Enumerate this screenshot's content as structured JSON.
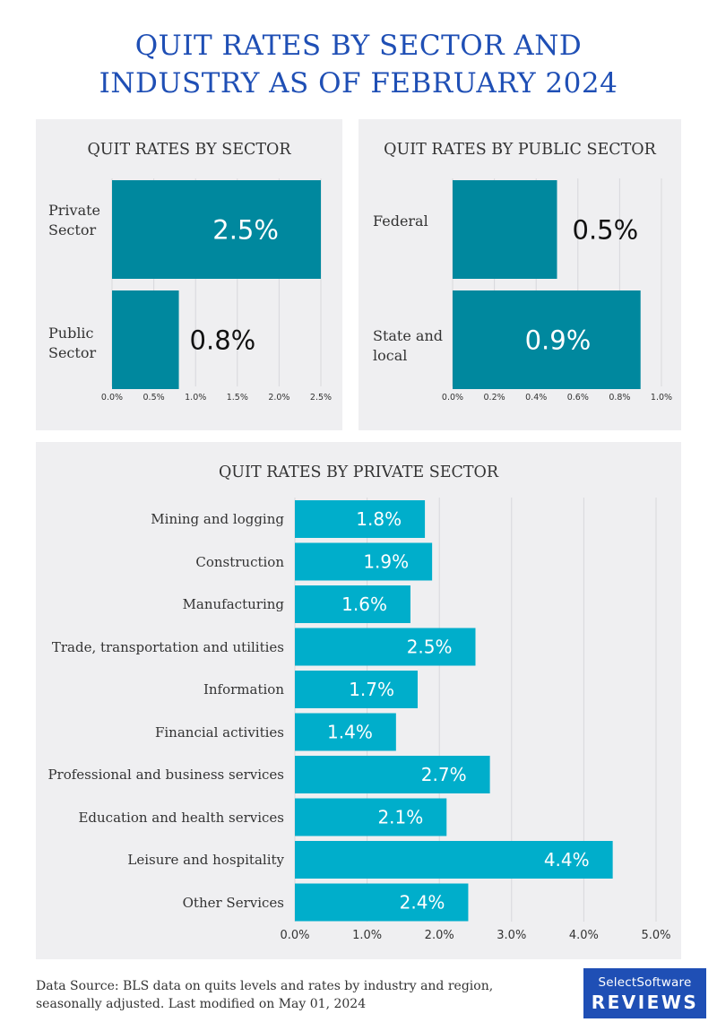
{
  "page": {
    "title_line1": "QUIT RATES BY SECTOR AND",
    "title_line2": "INDUSTRY AS OF FEBRUARY 2024",
    "footer_line1": "Data Source: BLS data on quits levels and rates by industry and region,",
    "footer_line2": "seasonally adjusted. Last modified on May 01, 2024",
    "logo_line1": "SelectSoftware",
    "logo_line2": "REVIEWS"
  },
  "colors": {
    "title": "#1f4fb5",
    "panel_bg": "#efeff1",
    "bar_dark": "#00889e",
    "bar_light": "#00aecb",
    "grid": "#d8d8dc"
  },
  "chart_data": [
    {
      "type": "bar",
      "orientation": "horizontal",
      "title": "QUIT RATES BY SECTOR",
      "categories": [
        "Private Sector",
        "Public Sector"
      ],
      "category_lines": [
        [
          "Private",
          "Sector"
        ],
        [
          "Public",
          "Sector"
        ]
      ],
      "values": [
        2.5,
        0.8
      ],
      "value_labels": [
        "2.5%",
        "0.8%"
      ],
      "xlim": [
        0,
        2.5
      ],
      "xticks": [
        "0.0%",
        "0.5%",
        "1.0%",
        "1.5%",
        "2.0%",
        "2.5%"
      ],
      "grid": true
    },
    {
      "type": "bar",
      "orientation": "horizontal",
      "title": "QUIT RATES BY PUBLIC SECTOR",
      "categories": [
        "Federal",
        "State and local"
      ],
      "category_lines": [
        [
          "Federal"
        ],
        [
          "State and",
          "local"
        ]
      ],
      "values": [
        0.5,
        0.9
      ],
      "value_labels": [
        "0.5%",
        "0.9%"
      ],
      "xlim": [
        0,
        1.0
      ],
      "xticks": [
        "0.0%",
        "0.2%",
        "0.4%",
        "0.6%",
        "0.8%",
        "1.0%"
      ],
      "grid": true
    },
    {
      "type": "bar",
      "orientation": "horizontal",
      "title": "QUIT RATES BY PRIVATE SECTOR",
      "categories": [
        "Mining and logging",
        "Construction",
        "Manufacturing",
        "Trade, transportation and utilities",
        "Information",
        "Financial activities",
        "Professional and business services",
        "Education and health services",
        "Leisure and hospitality",
        "Other Services"
      ],
      "values": [
        1.8,
        1.9,
        1.6,
        2.5,
        1.7,
        1.4,
        2.7,
        2.1,
        4.4,
        2.4
      ],
      "value_labels": [
        "1.8%",
        "1.9%",
        "1.6%",
        "2.5%",
        "1.7%",
        "1.4%",
        "2.7%",
        "2.1%",
        "4.4%",
        "2.4%"
      ],
      "xlim": [
        0,
        5.0
      ],
      "xticks": [
        "0.0%",
        "1.0%",
        "2.0%",
        "3.0%",
        "4.0%",
        "5.0%"
      ],
      "grid": true
    }
  ]
}
